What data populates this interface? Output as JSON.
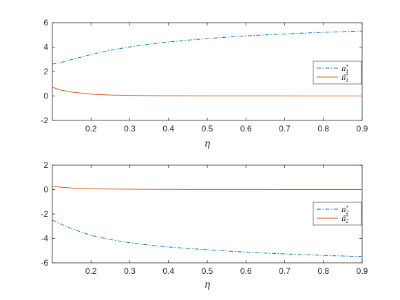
{
  "chart_data": [
    {
      "type": "line",
      "xlabel": "η",
      "ylabel": "",
      "xlim": [
        0.1,
        0.9
      ],
      "ylim": [
        -2,
        6
      ],
      "xticks": [
        0.2,
        0.3,
        0.4,
        0.5,
        0.6,
        0.7,
        0.8,
        0.9
      ],
      "yticks": [
        -2,
        0,
        2,
        4,
        6
      ],
      "legend_position": "right",
      "grid": false,
      "x": [
        0.1,
        0.12,
        0.15,
        0.2,
        0.25,
        0.3,
        0.35,
        0.4,
        0.45,
        0.5,
        0.55,
        0.6,
        0.65,
        0.7,
        0.75,
        0.8,
        0.85,
        0.9
      ],
      "series": [
        {
          "name": "π₁*",
          "legend_base": "π",
          "legend_sub": "1",
          "legend_sup": "*",
          "color": "#0072BD",
          "line_style": "dash-dot",
          "values": [
            2.62,
            2.72,
            2.98,
            3.4,
            3.75,
            4.02,
            4.24,
            4.42,
            4.57,
            4.7,
            4.82,
            4.92,
            5.0,
            5.08,
            5.15,
            5.21,
            5.27,
            5.32
          ]
        },
        {
          "name": "π̃₁*",
          "legend_base": "π̃",
          "legend_sub": "1",
          "legend_sup": "*",
          "color": "#D95319",
          "line_style": "solid",
          "values": [
            0.72,
            0.5,
            0.32,
            0.15,
            0.08,
            0.05,
            0.03,
            0.02,
            0.015,
            0.01,
            0.008,
            0.006,
            0.005,
            0.004,
            0.003,
            0.002,
            0.002,
            0.001
          ]
        }
      ]
    },
    {
      "type": "line",
      "xlabel": "η",
      "ylabel": "",
      "xlim": [
        0.1,
        0.9
      ],
      "ylim": [
        -6,
        2
      ],
      "xticks": [
        0.2,
        0.3,
        0.4,
        0.5,
        0.6,
        0.7,
        0.8,
        0.9
      ],
      "yticks": [
        -6,
        -4,
        -2,
        0,
        2
      ],
      "legend_position": "right",
      "grid": false,
      "x": [
        0.1,
        0.12,
        0.15,
        0.2,
        0.25,
        0.3,
        0.35,
        0.4,
        0.45,
        0.5,
        0.55,
        0.6,
        0.65,
        0.7,
        0.75,
        0.8,
        0.85,
        0.9
      ],
      "series": [
        {
          "name": "π₂*",
          "legend_base": "π",
          "legend_sub": "2",
          "legend_sup": "*",
          "color": "#0072BD",
          "line_style": "dash-dot",
          "values": [
            -2.5,
            -2.8,
            -3.2,
            -3.75,
            -4.1,
            -4.35,
            -4.55,
            -4.7,
            -4.82,
            -4.93,
            -5.03,
            -5.12,
            -5.2,
            -5.27,
            -5.33,
            -5.39,
            -5.44,
            -5.48
          ]
        },
        {
          "name": "π̃₂*",
          "legend_base": "π̃",
          "legend_sub": "2",
          "legend_sup": "*",
          "color": "#D95319",
          "line_style": "solid",
          "values": [
            0.28,
            0.2,
            0.13,
            0.07,
            0.045,
            0.03,
            0.02,
            0.015,
            0.01,
            0.008,
            0.006,
            0.005,
            0.004,
            0.003,
            0.002,
            0.002,
            0.001,
            0.001
          ]
        }
      ]
    }
  ]
}
